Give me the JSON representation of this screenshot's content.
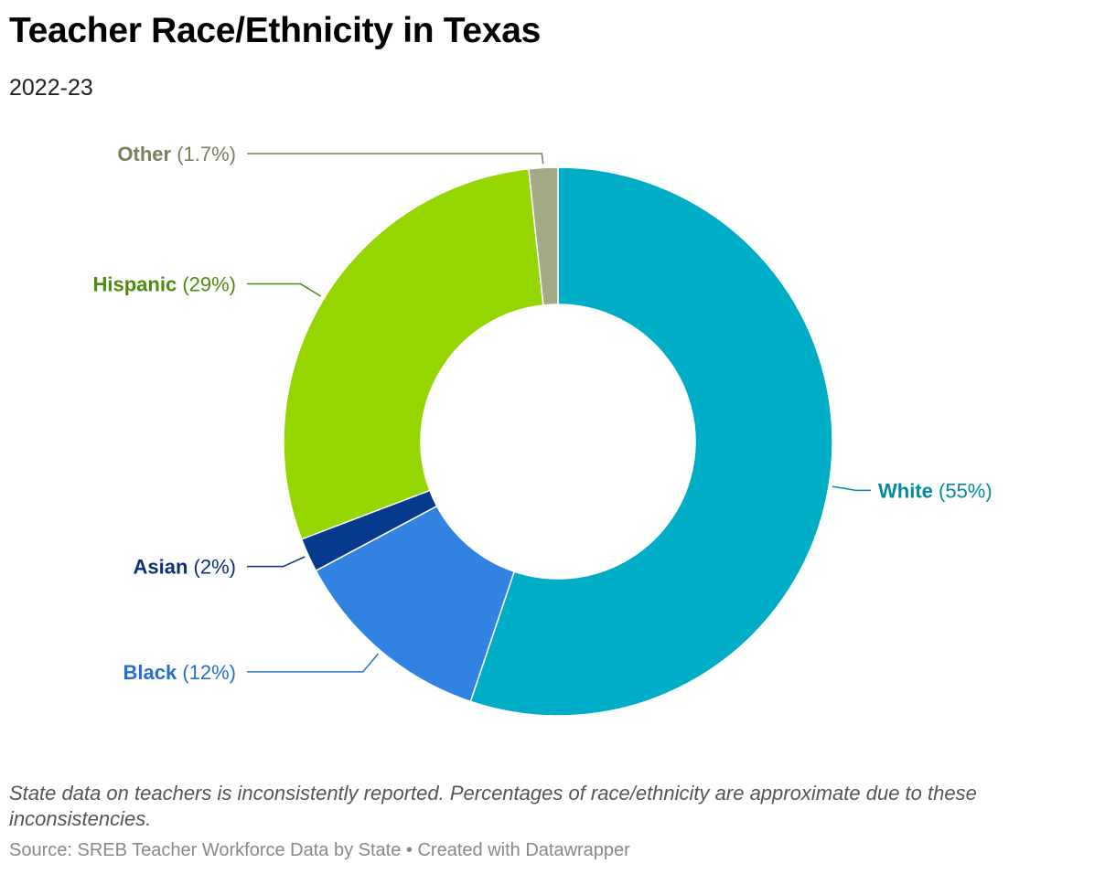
{
  "header": {
    "title": "Teacher Race/Ethnicity in Texas",
    "subtitle": "2022-23"
  },
  "footer": {
    "note": "State data on teachers is inconsistently reported. Percentages of race/ethnicity are approximate due to these inconsistencies.",
    "source": "Source: SREB Teacher Workforce Data by State",
    "separator": " • ",
    "credit": "Created with Datawrapper"
  },
  "chart_data": {
    "type": "pie",
    "donut": true,
    "title": "Teacher Race/Ethnicity in Texas",
    "subtitle": "2022-23",
    "slices": [
      {
        "name": "White",
        "value": 55,
        "label": "(55%)",
        "color": "#00adc6",
        "label_color": "#008c9e",
        "label_side": "right"
      },
      {
        "name": "Black",
        "value": 12,
        "label": "(12%)",
        "color": "#3282e2",
        "label_color": "#2771cc",
        "label_side": "left"
      },
      {
        "name": "Asian",
        "value": 2,
        "label": "(2%)",
        "color": "#053a8c",
        "label_color": "#0b2f7a",
        "label_side": "left"
      },
      {
        "name": "Hispanic",
        "value": 29,
        "label": "(29%)",
        "color": "#96d600",
        "label_color": "#4f8a10",
        "label_side": "left"
      },
      {
        "name": "Other",
        "value": 1.7,
        "label": "(1.7%)",
        "color": "#a3aa86",
        "label_color": "#7a7f5e",
        "label_side": "left"
      }
    ]
  }
}
